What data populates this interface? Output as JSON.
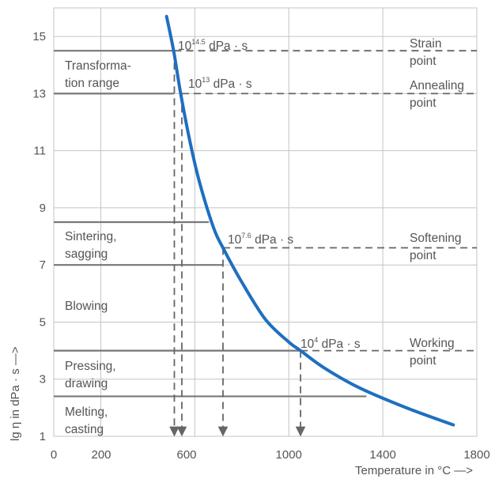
{
  "chart_data": {
    "type": "line",
    "xlabel": "Temperature in °C —>",
    "ylabel": "lg η in dPa · s —>",
    "xlim": [
      0,
      1800
    ],
    "ylim": [
      1,
      16
    ],
    "x_ticks": [
      0,
      200,
      600,
      1000,
      1400,
      1800
    ],
    "y_ticks": [
      1,
      3,
      5,
      7,
      9,
      11,
      13,
      15
    ],
    "grid": true,
    "series": [
      {
        "x": [
          480,
          510,
          540,
          580,
          620,
          680,
          720,
          800,
          900,
          1000,
          1050,
          1150,
          1300,
          1500,
          1700
        ],
        "y": [
          15.7,
          14.5,
          13.0,
          11.3,
          9.9,
          8.3,
          7.6,
          6.4,
          5.1,
          4.3,
          4.0,
          3.4,
          2.7,
          2.0,
          1.4
        ]
      }
    ],
    "regions": [
      {
        "label_lines": [
          "Transforma-",
          "tion range"
        ],
        "y_from": 13,
        "y_to": 14.5
      },
      {
        "label_lines": [
          "Sintering,",
          "sagging"
        ],
        "y_from": 7,
        "y_to": 8.5
      },
      {
        "label_lines": [
          "Blowing"
        ],
        "y_from": 4,
        "y_to": 7
      },
      {
        "label_lines": [
          "Pressing,",
          "drawing"
        ],
        "y_from": 2.4,
        "y_to": 4
      },
      {
        "label_lines": [
          "Melting,",
          "casting"
        ],
        "y_from": 1,
        "y_to": 2.4
      }
    ],
    "region_line_ends": [
      512,
      512,
      660,
      720,
      1050,
      1330
    ],
    "fixed_points": [
      {
        "name_lines": [
          "Strain",
          "point"
        ],
        "viscosity_base": "10",
        "viscosity_exp": "14.5",
        "viscosity_unit": "dPa · s",
        "lg_eta": 14.5,
        "temperature": 513
      },
      {
        "name_lines": [
          "Annealing",
          "point"
        ],
        "viscosity_base": "10",
        "viscosity_exp": "13",
        "viscosity_unit": "dPa · s",
        "lg_eta": 13,
        "temperature": 545
      },
      {
        "name_lines": [
          "Softening",
          "point"
        ],
        "viscosity_base": "10",
        "viscosity_exp": "7.6",
        "viscosity_unit": "dPa · s",
        "lg_eta": 7.6,
        "temperature": 720
      },
      {
        "name_lines": [
          "Working",
          "point"
        ],
        "viscosity_base": "10",
        "viscosity_exp": "4",
        "viscosity_unit": "dPa · s",
        "lg_eta": 4,
        "temperature": 1050
      }
    ],
    "colors": {
      "curve": "#1f6fbf",
      "grid": "#c4c4c4",
      "region_line": "#777777",
      "dash": "#666666",
      "text": "#555555"
    }
  }
}
